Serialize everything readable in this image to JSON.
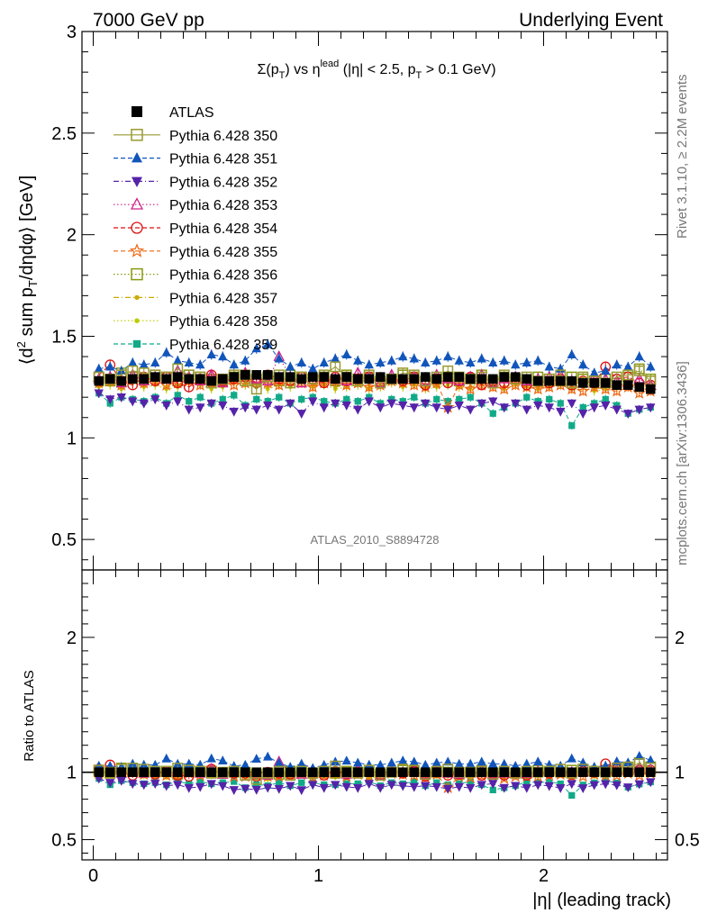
{
  "header": {
    "left": "7000 GeV pp",
    "right": "Underlying Event"
  },
  "side_labels": {
    "upper": "Rivet 3.1.10, ≥ 2.2M events",
    "lower": "mcplots.cern.ch [arXiv:1306.3436]"
  },
  "main_panel": {
    "title": "Σ(p_T) vs η^lead (|η| < 2.5, p_T > 0.1 GeV)",
    "ylabel": "⟨d² sum p_T/dηdφ⟩ [GeV]",
    "watermark": "ATLAS_2010_S8894728",
    "ylim": [
      0.35,
      3.0
    ],
    "yticks": [
      0.5,
      1,
      1.5,
      2,
      2.5,
      3
    ],
    "ytick_labels": [
      "0.5",
      "1",
      "1.5",
      "2",
      "2.5",
      "3"
    ]
  },
  "ratio_panel": {
    "ylabel": "Ratio to ATLAS",
    "ylim": [
      0.35,
      2.5
    ],
    "yticks": [
      0.5,
      1,
      2
    ],
    "ytick_labels": [
      "0.5",
      "1",
      "2"
    ],
    "band_color": "#ffff80"
  },
  "xaxis": {
    "label": "|η| (leading track)",
    "xlim": [
      -0.05,
      2.55
    ],
    "xticks": [
      0,
      1,
      2
    ],
    "xtick_labels": [
      "0",
      "1",
      "2"
    ]
  },
  "legend": [
    {
      "label": "ATLAS",
      "color": "#000000",
      "marker": "filled-square",
      "dash": "none"
    },
    {
      "label": "Pythia 6.428 350",
      "color": "#999933",
      "marker": "open-square",
      "dash": "solid"
    },
    {
      "label": "Pythia 6.428 351",
      "color": "#1155bb",
      "marker": "filled-triangle-up",
      "dash": "dashed"
    },
    {
      "label": "Pythia 6.428 352",
      "color": "#5522aa",
      "marker": "filled-triangle-down",
      "dash": "dashdot"
    },
    {
      "label": "Pythia 6.428 353",
      "color": "#cc2288",
      "marker": "open-triangle-up",
      "dash": "dotted"
    },
    {
      "label": "Pythia 6.428 354",
      "color": "#dd1111",
      "marker": "open-circle",
      "dash": "dashed"
    },
    {
      "label": "Pythia 6.428 355",
      "color": "#ee6611",
      "marker": "open-star",
      "dash": "dashed"
    },
    {
      "label": "Pythia 6.428 356",
      "color": "#889911",
      "marker": "open-square",
      "dash": "dotted"
    },
    {
      "label": "Pythia 6.428 357",
      "color": "#ccaa00",
      "marker": "small-dot",
      "dash": "dashdot"
    },
    {
      "label": "Pythia 6.428 358",
      "color": "#bbcc00",
      "marker": "small-dot",
      "dash": "dotted"
    },
    {
      "label": "Pythia 6.428 359",
      "color": "#11aa88",
      "marker": "filled-square-small",
      "dash": "dashed"
    }
  ],
  "chart_data": {
    "type": "scatter",
    "x_bins": [
      0.025,
      0.075,
      0.125,
      0.175,
      0.225,
      0.275,
      0.325,
      0.375,
      0.425,
      0.475,
      0.525,
      0.575,
      0.625,
      0.675,
      0.725,
      0.775,
      0.825,
      0.875,
      0.925,
      0.975,
      1.025,
      1.075,
      1.125,
      1.175,
      1.225,
      1.275,
      1.325,
      1.375,
      1.425,
      1.475,
      1.525,
      1.575,
      1.625,
      1.675,
      1.725,
      1.775,
      1.825,
      1.875,
      1.925,
      1.975,
      2.025,
      2.075,
      2.125,
      2.175,
      2.225,
      2.275,
      2.325,
      2.375,
      2.425,
      2.475
    ],
    "series": [
      {
        "name": "ATLAS",
        "values": [
          1.28,
          1.29,
          1.28,
          1.29,
          1.29,
          1.3,
          1.29,
          1.3,
          1.29,
          1.29,
          1.28,
          1.29,
          1.3,
          1.31,
          1.31,
          1.31,
          1.3,
          1.3,
          1.29,
          1.3,
          1.3,
          1.29,
          1.3,
          1.29,
          1.29,
          1.3,
          1.29,
          1.29,
          1.29,
          1.3,
          1.29,
          1.3,
          1.3,
          1.29,
          1.29,
          1.29,
          1.3,
          1.3,
          1.29,
          1.28,
          1.28,
          1.28,
          1.28,
          1.27,
          1.27,
          1.27,
          1.26,
          1.26,
          1.25,
          1.24
        ]
      },
      {
        "name": "Pythia 6.428 350",
        "values": [
          1.3,
          1.29,
          1.31,
          1.33,
          1.32,
          1.31,
          1.3,
          1.34,
          1.31,
          1.3,
          1.27,
          1.29,
          1.31,
          1.28,
          1.24,
          1.3,
          1.31,
          1.27,
          1.3,
          1.29,
          1.31,
          1.35,
          1.3,
          1.28,
          1.31,
          1.27,
          1.29,
          1.32,
          1.31,
          1.28,
          1.3,
          1.33,
          1.3,
          1.29,
          1.3,
          1.27,
          1.31,
          1.29,
          1.3,
          1.28,
          1.29,
          1.31,
          1.27,
          1.3,
          1.28,
          1.27,
          1.3,
          1.31,
          1.33,
          1.28
        ]
      },
      {
        "name": "Pythia 6.428 351",
        "values": [
          1.34,
          1.35,
          1.33,
          1.37,
          1.36,
          1.37,
          1.42,
          1.38,
          1.37,
          1.36,
          1.41,
          1.4,
          1.36,
          1.38,
          1.44,
          1.46,
          1.39,
          1.35,
          1.37,
          1.34,
          1.37,
          1.39,
          1.41,
          1.38,
          1.36,
          1.37,
          1.38,
          1.4,
          1.39,
          1.37,
          1.38,
          1.4,
          1.38,
          1.37,
          1.39,
          1.37,
          1.38,
          1.36,
          1.37,
          1.38,
          1.35,
          1.34,
          1.41,
          1.36,
          1.32,
          1.33,
          1.36,
          1.35,
          1.4,
          1.35
        ]
      },
      {
        "name": "Pythia 6.428 352",
        "values": [
          1.22,
          1.19,
          1.2,
          1.18,
          1.17,
          1.19,
          1.16,
          1.18,
          1.14,
          1.15,
          1.17,
          1.16,
          1.13,
          1.15,
          1.14,
          1.16,
          1.14,
          1.17,
          1.12,
          1.18,
          1.15,
          1.17,
          1.16,
          1.14,
          1.18,
          1.15,
          1.17,
          1.16,
          1.15,
          1.17,
          1.15,
          1.14,
          1.16,
          1.14,
          1.17,
          1.18,
          1.15,
          1.17,
          1.14,
          1.16,
          1.15,
          1.13,
          1.17,
          1.12,
          1.15,
          1.16,
          1.14,
          1.12,
          1.14,
          1.15
        ]
      },
      {
        "name": "Pythia 6.428 353",
        "values": [
          1.29,
          1.3,
          1.27,
          1.31,
          1.28,
          1.3,
          1.29,
          1.33,
          1.3,
          1.28,
          1.31,
          1.27,
          1.3,
          1.32,
          1.29,
          1.28,
          1.4,
          1.3,
          1.27,
          1.31,
          1.3,
          1.29,
          1.28,
          1.32,
          1.3,
          1.27,
          1.31,
          1.29,
          1.3,
          1.28,
          1.31,
          1.29,
          1.28,
          1.3,
          1.31,
          1.27,
          1.29,
          1.3,
          1.28,
          1.29,
          1.3,
          1.31,
          1.28,
          1.27,
          1.3,
          1.29,
          1.28,
          1.27,
          1.29,
          1.26
        ]
      },
      {
        "name": "Pythia 6.428 354",
        "values": [
          1.31,
          1.36,
          1.28,
          1.26,
          1.3,
          1.28,
          1.3,
          1.27,
          1.25,
          1.29,
          1.31,
          1.28,
          1.29,
          1.3,
          1.27,
          1.31,
          1.29,
          1.28,
          1.3,
          1.29,
          1.27,
          1.3,
          1.28,
          1.29,
          1.3,
          1.27,
          1.29,
          1.28,
          1.3,
          1.26,
          1.29,
          1.27,
          1.28,
          1.3,
          1.26,
          1.28,
          1.27,
          1.29,
          1.26,
          1.28,
          1.27,
          1.29,
          1.26,
          1.28,
          1.27,
          1.35,
          1.29,
          1.3,
          1.27,
          1.26
        ]
      },
      {
        "name": "Pythia 6.428 355",
        "values": [
          1.27,
          1.28,
          1.26,
          1.29,
          1.27,
          1.28,
          1.26,
          1.27,
          1.28,
          1.26,
          1.27,
          1.28,
          1.26,
          1.27,
          1.28,
          1.27,
          1.26,
          1.28,
          1.27,
          1.25,
          1.27,
          1.28,
          1.26,
          1.27,
          1.25,
          1.26,
          1.28,
          1.27,
          1.26,
          1.25,
          1.27,
          1.15,
          1.26,
          1.24,
          1.26,
          1.25,
          1.24,
          1.26,
          1.25,
          1.24,
          1.25,
          1.26,
          1.24,
          1.23,
          1.25,
          1.24,
          1.23,
          1.25,
          1.22,
          1.23
        ]
      },
      {
        "name": "Pythia 6.428 356",
        "values": [
          1.3,
          1.28,
          1.32,
          1.3,
          1.29,
          1.31,
          1.3,
          1.28,
          1.31,
          1.3,
          1.29,
          1.28,
          1.3,
          1.31,
          1.29,
          1.3,
          1.28,
          1.31,
          1.3,
          1.29,
          1.3,
          1.28,
          1.31,
          1.29,
          1.3,
          1.28,
          1.29,
          1.31,
          1.3,
          1.28,
          1.29,
          1.3,
          1.28,
          1.29,
          1.31,
          1.28,
          1.3,
          1.29,
          1.28,
          1.3,
          1.29,
          1.28,
          1.3,
          1.29,
          1.28,
          1.29,
          1.27,
          1.3,
          1.34,
          1.29
        ]
      },
      {
        "name": "Pythia 6.428 357",
        "values": [
          1.26,
          1.27,
          1.25,
          1.28,
          1.26,
          1.27,
          1.25,
          1.26,
          1.28,
          1.27,
          1.25,
          1.26,
          1.28,
          1.27,
          1.26,
          1.25,
          1.27,
          1.26,
          1.28,
          1.26,
          1.27,
          1.25,
          1.26,
          1.27,
          1.25,
          1.26,
          1.28,
          1.26,
          1.27,
          1.25,
          1.26,
          1.27,
          1.26,
          1.25,
          1.27,
          1.26,
          1.25,
          1.27,
          1.26,
          1.25,
          1.26,
          1.27,
          1.25,
          1.26,
          1.24,
          1.25,
          1.26,
          1.27,
          1.25,
          1.26
        ]
      },
      {
        "name": "Pythia 6.428 358",
        "values": [
          1.25,
          1.26,
          1.24,
          1.27,
          1.25,
          1.26,
          1.24,
          1.25,
          1.27,
          1.26,
          1.24,
          1.25,
          1.27,
          1.26,
          1.25,
          1.24,
          1.26,
          1.25,
          1.27,
          1.25,
          1.26,
          1.24,
          1.25,
          1.26,
          1.24,
          1.25,
          1.27,
          1.25,
          1.26,
          1.24,
          1.25,
          1.26,
          1.25,
          1.24,
          1.26,
          1.25,
          1.24,
          1.26,
          1.25,
          1.24,
          1.25,
          1.26,
          1.24,
          1.25,
          1.23,
          1.24,
          1.25,
          1.26,
          1.24,
          1.25
        ]
      },
      {
        "name": "Pythia 6.428 359",
        "values": [
          1.22,
          1.17,
          1.2,
          1.19,
          1.18,
          1.2,
          1.17,
          1.21,
          1.18,
          1.2,
          1.17,
          1.19,
          1.21,
          1.16,
          1.19,
          1.18,
          1.2,
          1.17,
          1.19,
          1.2,
          1.18,
          1.17,
          1.19,
          1.18,
          1.2,
          1.17,
          1.19,
          1.18,
          1.2,
          1.17,
          1.19,
          1.18,
          1.19,
          1.2,
          1.17,
          1.12,
          1.15,
          1.17,
          1.2,
          1.18,
          1.19,
          1.17,
          1.06,
          1.15,
          1.17,
          1.19,
          1.16,
          1.12,
          1.14,
          1.15
        ]
      }
    ]
  }
}
